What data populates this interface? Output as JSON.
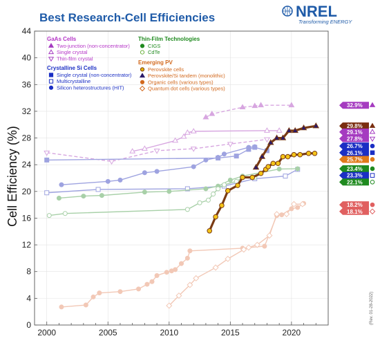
{
  "chart_data": {
    "type": "line",
    "title": "Best Research-Cell Efficiencies",
    "ylabel": "Cell Efficiency (%)",
    "xlabel": "",
    "xlim": [
      1999,
      2023
    ],
    "ylim": [
      0,
      44
    ],
    "xticks": [
      2000,
      2005,
      2010,
      2015,
      2020
    ],
    "yticks": [
      0,
      4,
      8,
      12,
      16,
      20,
      24,
      28,
      32,
      36,
      40,
      44
    ],
    "revision": "(Rev. 01-28-2022)",
    "logo": {
      "word": "NREL",
      "tagline": "Transforming ENERGY"
    },
    "legend_groups": [
      {
        "title": "GaAs Cells",
        "color": "#b535c7",
        "items": [
          "Two-junction (non-concentrator)",
          "Single crystal",
          "Thin-film crystal"
        ]
      },
      {
        "title": "Crystalline Si Cells",
        "color": "#1b2fc4",
        "items": [
          "Single crystal (non-concentrator)",
          "Multicrystalline",
          "Silicon heterostructures (HIT)"
        ]
      },
      {
        "title": "Thin-Film Technologies",
        "color": "#1f8a1f",
        "items": [
          "CIGS",
          "CdTe"
        ]
      },
      {
        "title": "Emerging PV",
        "color": "#d2691e",
        "items": [
          "Perovskite cells",
          "Perovskite/Si tandem (monolithic)",
          "Organic cells (various types)",
          "Quantum dot cells (various types)"
        ]
      }
    ],
    "series": [
      {
        "name": "Two-junction (non-concentrator)",
        "color": "#d7a6e0",
        "dashed": true,
        "marker": "tri-filled",
        "x": [
          2013.0,
          2013.5,
          2016.0,
          2017.0,
          2017.5,
          2020.0
        ],
        "y": [
          31.1,
          31.6,
          32.6,
          32.8,
          32.9,
          32.9
        ]
      },
      {
        "name": "Single crystal",
        "color": "#d7a6e0",
        "dashed": false,
        "marker": "tri-open",
        "x": [
          2007.0,
          2008.0,
          2010.5,
          2011.2,
          2011.5,
          2012.0,
          2018.0,
          2019.0
        ],
        "y": [
          26.0,
          26.4,
          27.6,
          28.2,
          28.8,
          29.0,
          29.1,
          29.1
        ]
      },
      {
        "name": "Thin-film crystal",
        "color": "#d7a6e0",
        "dashed": true,
        "marker": "tri-down-open",
        "x": [
          2000,
          2005.3,
          2009,
          2012,
          2015,
          2018
        ],
        "y": [
          25.8,
          24.5,
          26.1,
          26.4,
          27.1,
          27.8
        ]
      },
      {
        "name": "Single crystal (non-concentrator)",
        "color": "#9ea3e0",
        "dashed": false,
        "marker": "square-filled",
        "x": [
          2000,
          2014,
          2015.5,
          2016.5,
          2017,
          2018
        ],
        "y": [
          24.7,
          25.0,
          25.3,
          26.3,
          26.6,
          26.1
        ]
      },
      {
        "name": "Multicrystalline",
        "color": "#9ea3e0",
        "dashed": false,
        "marker": "square-open",
        "x": [
          2000,
          2004.2,
          2011.5,
          2014.5,
          2017,
          2019.5,
          2020.5
        ],
        "y": [
          19.8,
          20.3,
          20.4,
          20.8,
          21.9,
          22.3,
          23.3
        ]
      },
      {
        "name": "Silicon heterostructures (HIT)",
        "color": "#9ea3e0",
        "dashed": false,
        "marker": "circle-filled",
        "x": [
          2001.2,
          2005.0,
          2006.0,
          2008.0,
          2009.0,
          2012.0,
          2013.0,
          2014.0,
          2014.5,
          2016.5,
          2017.0
        ],
        "y": [
          21.0,
          21.5,
          21.7,
          22.8,
          23.0,
          23.7,
          24.7,
          25.1,
          25.6,
          26.6,
          26.7
        ]
      },
      {
        "name": "CIGS",
        "color": "#a8d0a8",
        "dashed": false,
        "marker": "circle-filled",
        "x": [
          2001,
          2003,
          2004.5,
          2008,
          2010,
          2013,
          2014,
          2015,
          2016,
          2019,
          2020.5
        ],
        "y": [
          19.0,
          19.3,
          19.4,
          19.9,
          20.0,
          20.4,
          20.8,
          21.7,
          22.3,
          23.35,
          23.4
        ]
      },
      {
        "name": "CdTe",
        "color": "#a8d0a8",
        "dashed": false,
        "marker": "circle-open",
        "x": [
          2000.2,
          2001.5,
          2011.5,
          2012.5,
          2013.2,
          2013.6,
          2014.0,
          2014.5,
          2015.5,
          2016.0,
          2017.0
        ],
        "y": [
          16.4,
          16.7,
          17.3,
          18.3,
          18.7,
          19.6,
          20.4,
          21.0,
          21.5,
          22.1,
          22.1
        ]
      },
      {
        "name": "Perovskite cells",
        "color": "#f5c518",
        "edge": "#7a3b14",
        "dashed": false,
        "marker": "circle-filled",
        "highlight": true,
        "x": [
          2013.3,
          2013.8,
          2014.3,
          2014.8,
          2015.6,
          2016.0,
          2016.8,
          2017.5,
          2017.9,
          2018.1,
          2018.5,
          2018.9,
          2019.3,
          2019.7,
          2020.2,
          2020.7,
          2021.4,
          2021.9
        ],
        "y": [
          14.1,
          16.2,
          17.9,
          20.1,
          20.9,
          22.1,
          22.1,
          22.7,
          23.3,
          23.7,
          24.2,
          24.2,
          25.2,
          25.2,
          25.5,
          25.5,
          25.7,
          25.7
        ]
      },
      {
        "name": "Perovskite/Si tandem (monolithic)",
        "color": "#2a1a6a",
        "edge": "#7a3b14",
        "dashed": false,
        "marker": "tri-filled",
        "highlight": true,
        "x": [
          2017.1,
          2017.6,
          2018.3,
          2018.8,
          2019.3,
          2019.8,
          2020.3,
          2021.0,
          2022.0
        ],
        "y": [
          23.6,
          25.2,
          27.3,
          28.0,
          28.0,
          29.1,
          29.1,
          29.5,
          29.8
        ]
      },
      {
        "name": "Organic cells (various types)",
        "color": "#f2c8b6",
        "dashed": false,
        "marker": "circle-filled",
        "x": [
          2001.2,
          2003.2,
          2003.8,
          2004.3,
          2006.0,
          2007.5,
          2008.2,
          2008.6,
          2009.0,
          2009.8,
          2010.2,
          2010.5,
          2011.0,
          2011.5,
          2011.7,
          2016.0,
          2017.8,
          2018.8,
          2019.2,
          2020.0,
          2020.5,
          2021.0
        ],
        "y": [
          2.7,
          3.0,
          4.2,
          4.8,
          5.0,
          5.4,
          6.1,
          6.5,
          7.4,
          7.9,
          8.1,
          8.3,
          9.2,
          10.0,
          11.1,
          11.5,
          11.8,
          16.4,
          16.5,
          17.4,
          17.6,
          18.2
        ]
      },
      {
        "name": "Quantum dot cells (various types)",
        "color": "#f2c8b6",
        "dashed": false,
        "marker": "diamond-open",
        "x": [
          2010.0,
          2010.8,
          2011.7,
          2012.2,
          2013.8,
          2014.8,
          2016.1,
          2016.5,
          2017.2,
          2018.2,
          2018.8,
          2019.6,
          2020.2,
          2020.9
        ],
        "y": [
          2.9,
          4.4,
          6.0,
          7.0,
          8.6,
          9.9,
          11.3,
          11.6,
          12.0,
          13.4,
          16.6,
          16.6,
          18.1,
          18.1
        ]
      }
    ],
    "record_labels": [
      {
        "text": "32.9%",
        "value": 32.9,
        "color": "#a53bc0",
        "marker": "tri-filled",
        "slot": 32.9
      },
      {
        "text": "29.8%",
        "value": 29.8,
        "color": "#7a2e10",
        "marker": "tri-filled",
        "slot": 29.8
      },
      {
        "text": "29.1%",
        "value": 29.1,
        "color": "#a53bc0",
        "marker": "tri-open",
        "slot": 28.9
      },
      {
        "text": "27.8%",
        "value": 27.8,
        "color": "#a53bc0",
        "marker": "tri-down-open",
        "slot": 27.9
      },
      {
        "text": "26.7%",
        "value": 26.7,
        "color": "#1b2fc4",
        "marker": "circle-filled",
        "slot": 26.8
      },
      {
        "text": "26.1%",
        "value": 26.1,
        "color": "#1b2fc4",
        "marker": "square-filled",
        "slot": 25.8
      },
      {
        "text": "25.7%",
        "value": 25.7,
        "color": "#e07a1a",
        "marker": "circle-filled",
        "slot": 24.8
      },
      {
        "text": "23.4%",
        "value": 23.4,
        "color": "#1f8a1f",
        "marker": "circle-filled",
        "slot": 23.4
      },
      {
        "text": "23.3%",
        "value": 23.3,
        "color": "#1b2fc4",
        "marker": "square-open",
        "slot": 22.4
      },
      {
        "text": "22.1%",
        "value": 22.1,
        "color": "#1f8a1f",
        "marker": "circle-open",
        "slot": 21.4
      },
      {
        "text": "18.2%",
        "value": 18.2,
        "color": "#e06060",
        "marker": "circle-filled",
        "slot": 18.0
      },
      {
        "text": "18.1%",
        "value": 18.1,
        "color": "#e06060",
        "marker": "diamond-open",
        "slot": 17.0
      }
    ]
  }
}
